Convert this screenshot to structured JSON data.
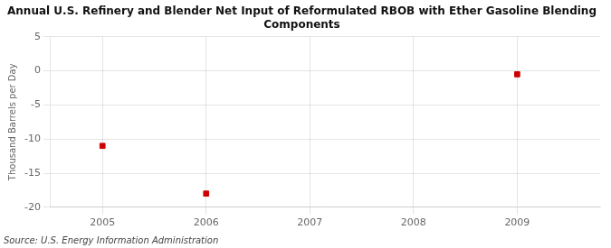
{
  "chart_data": {
    "type": "scatter",
    "title": "Annual U.S. Refinery and Blender Net Input of Reformulated RBOB with Ether Gasoline Blending\nComponents",
    "ylabel": "Thousand Barrels per Day",
    "source": "Source: U.S. Energy Information Administration",
    "x": [
      2005,
      2006,
      2009
    ],
    "values": [
      -11,
      -18,
      -0.5
    ],
    "color": "#cc0000",
    "marker": "square",
    "xlim": [
      2004.5,
      2009.8
    ],
    "xticks": [
      2005,
      2006,
      2007,
      2008,
      2009
    ],
    "ylim": [
      -20,
      5
    ],
    "yticks": [
      5,
      0,
      -5,
      -10,
      -15,
      -20
    ],
    "grid": true
  }
}
